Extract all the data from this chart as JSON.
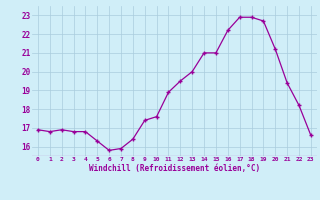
{
  "x": [
    0,
    1,
    2,
    3,
    4,
    5,
    6,
    7,
    8,
    9,
    10,
    11,
    12,
    13,
    14,
    15,
    16,
    17,
    18,
    19,
    20,
    21,
    22,
    23
  ],
  "y": [
    16.9,
    16.8,
    16.9,
    16.8,
    16.8,
    16.3,
    15.8,
    15.9,
    16.4,
    17.4,
    17.6,
    18.9,
    19.5,
    20.0,
    21.0,
    21.0,
    22.2,
    22.9,
    22.9,
    22.7,
    21.2,
    19.4,
    18.2,
    16.6
  ],
  "line_color": "#990099",
  "marker_color": "#990099",
  "background_color": "#d0eef8",
  "grid_color": "#aaccdd",
  "xlabel": "Windchill (Refroidissement éolien,°C)",
  "ytick_labels": [
    16,
    17,
    18,
    19,
    20,
    21,
    22,
    23
  ],
  "xtick_labels": [
    0,
    1,
    2,
    3,
    4,
    5,
    6,
    7,
    8,
    9,
    10,
    11,
    12,
    13,
    14,
    15,
    16,
    17,
    18,
    19,
    20,
    21,
    22,
    23
  ],
  "ylim": [
    15.5,
    23.5
  ],
  "xlim": [
    -0.5,
    23.5
  ],
  "font_color": "#990099"
}
